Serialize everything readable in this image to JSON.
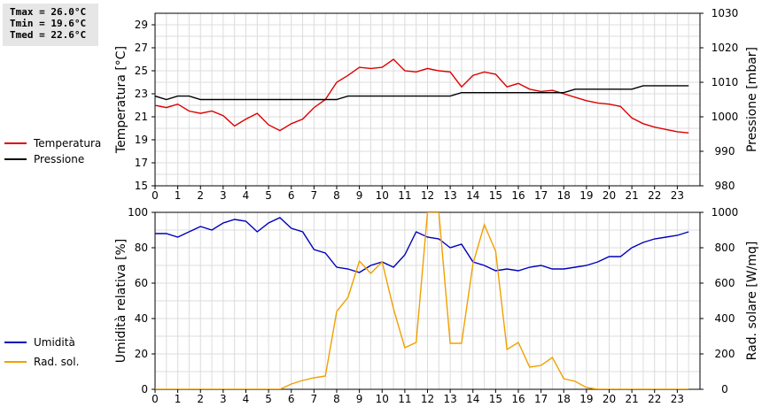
{
  "stats": {
    "tmax": "Tmax = 26.0°C",
    "tmin": "Tmin = 19.6°C",
    "tmed": "Tmed = 22.6°C"
  },
  "chart_data": [
    {
      "type": "line",
      "x_ticks": [
        "0",
        "1",
        "2",
        "3",
        "4",
        "5",
        "6",
        "7",
        "8",
        "9",
        "10",
        "11",
        "12",
        "13",
        "14",
        "15",
        "16",
        "17",
        "18",
        "19",
        "20",
        "21",
        "22",
        "23"
      ],
      "xlim": [
        0,
        24
      ],
      "ylabel": "Temperatura [°C]",
      "y2label": "Pressione [mbar]",
      "ylim": [
        15,
        30
      ],
      "y2lim": [
        980,
        1030
      ],
      "y_ticks": [
        "15",
        "17",
        "19",
        "21",
        "23",
        "25",
        "27",
        "29"
      ],
      "y2_ticks": [
        "980",
        "990",
        "1000",
        "1010",
        "1020",
        "1030"
      ],
      "grid": true,
      "legend_position": "left",
      "series": [
        {
          "name": "Temperatura",
          "axis": "left",
          "color": "#dd0000",
          "x": [
            0,
            0.5,
            1,
            1.5,
            2,
            2.5,
            3,
            3.5,
            4,
            4.5,
            5,
            5.5,
            6,
            6.5,
            7,
            7.5,
            8,
            8.5,
            9,
            9.5,
            10,
            10.5,
            11,
            11.5,
            12,
            12.5,
            13,
            13.5,
            14,
            14.5,
            15,
            15.5,
            16,
            16.5,
            17,
            17.5,
            18,
            18.5,
            19,
            19.5,
            20,
            20.5,
            21,
            21.5,
            22,
            22.5,
            23,
            23.5
          ],
          "values": [
            22.0,
            21.8,
            22.1,
            21.5,
            21.3,
            21.5,
            21.1,
            20.2,
            20.8,
            21.3,
            20.3,
            19.8,
            20.4,
            20.8,
            21.8,
            22.5,
            24.0,
            24.6,
            25.3,
            25.2,
            25.3,
            26.0,
            25.0,
            24.9,
            25.2,
            25.0,
            24.9,
            23.6,
            24.6,
            24.9,
            24.7,
            23.6,
            23.9,
            23.4,
            23.2,
            23.3,
            23.0,
            22.7,
            22.4,
            22.2,
            22.1,
            21.9,
            20.9,
            20.4,
            20.1,
            19.9,
            19.7,
            19.6
          ]
        },
        {
          "name": "Pressione",
          "axis": "right",
          "color": "#000000",
          "x": [
            0,
            0.5,
            1,
            1.5,
            2,
            2.5,
            3,
            3.5,
            4,
            4.5,
            5,
            5.5,
            6,
            6.5,
            7,
            7.5,
            8,
            8.5,
            9,
            9.5,
            10,
            10.5,
            11,
            11.5,
            12,
            12.5,
            13,
            13.5,
            14,
            14.5,
            15,
            15.5,
            16,
            16.5,
            17,
            17.5,
            18,
            18.5,
            19,
            19.5,
            20,
            20.5,
            21,
            21.5,
            22,
            22.5,
            23,
            23.5
          ],
          "values": [
            1006,
            1005,
            1006,
            1006,
            1005,
            1005,
            1005,
            1005,
            1005,
            1005,
            1005,
            1005,
            1005,
            1005,
            1005,
            1005,
            1005,
            1006,
            1006,
            1006,
            1006,
            1006,
            1006,
            1006,
            1006,
            1006,
            1006,
            1007,
            1007,
            1007,
            1007,
            1007,
            1007,
            1007,
            1007,
            1007,
            1007,
            1008,
            1008,
            1008,
            1008,
            1008,
            1008,
            1009,
            1009,
            1009,
            1009,
            1009
          ]
        }
      ]
    },
    {
      "type": "line",
      "x_ticks": [
        "0",
        "1",
        "2",
        "3",
        "4",
        "5",
        "6",
        "7",
        "8",
        "9",
        "10",
        "11",
        "12",
        "13",
        "14",
        "15",
        "16",
        "17",
        "18",
        "19",
        "20",
        "21",
        "22",
        "23"
      ],
      "xlim": [
        0,
        24
      ],
      "ylabel": "Umidità relativa [%]",
      "y2label": "Rad. solare [W/mq]",
      "ylim": [
        0,
        100
      ],
      "y2lim": [
        0,
        1000
      ],
      "y_ticks": [
        "0",
        "20",
        "40",
        "60",
        "80",
        "100"
      ],
      "y2_ticks": [
        "0",
        "200",
        "400",
        "600",
        "800",
        "1000"
      ],
      "grid": true,
      "legend_position": "left",
      "series": [
        {
          "name": "Umidità",
          "axis": "left",
          "color": "#0000bb",
          "x": [
            0,
            0.5,
            1,
            1.5,
            2,
            2.5,
            3,
            3.5,
            4,
            4.5,
            5,
            5.5,
            6,
            6.5,
            7,
            7.5,
            8,
            8.5,
            9,
            9.5,
            10,
            10.5,
            11,
            11.5,
            12,
            12.5,
            13,
            13.5,
            14,
            14.5,
            15,
            15.5,
            16,
            16.5,
            17,
            17.5,
            18,
            18.5,
            19,
            19.5,
            20,
            20.5,
            21,
            21.5,
            22,
            22.5,
            23,
            23.5
          ],
          "values": [
            88,
            88,
            86,
            89,
            92,
            90,
            94,
            96,
            95,
            89,
            94,
            97,
            91,
            89,
            79,
            77,
            69,
            68,
            66,
            70,
            72,
            69,
            76,
            89,
            86,
            85,
            80,
            82,
            72,
            70,
            67,
            68,
            67,
            69,
            70,
            68,
            68,
            69,
            70,
            72,
            75,
            75,
            80,
            83,
            85,
            86,
            87,
            89
          ]
        },
        {
          "name": "Rad. sol.",
          "axis": "right",
          "color": "#f0a000",
          "x": [
            0,
            0.5,
            1,
            1.5,
            2,
            2.5,
            3,
            3.5,
            4,
            4.5,
            5,
            5.5,
            6,
            6.5,
            7,
            7.5,
            8,
            8.5,
            9,
            9.5,
            10,
            10.5,
            11,
            11.5,
            12,
            12.5,
            13,
            13.5,
            14,
            14.5,
            15,
            15.5,
            16,
            16.5,
            17,
            17.5,
            18,
            18.5,
            19,
            19.5,
            20,
            20.5,
            21,
            21.5,
            22,
            22.5,
            23,
            23.5
          ],
          "values": [
            0,
            0,
            0,
            0,
            0,
            0,
            0,
            0,
            0,
            0,
            0,
            0,
            30,
            50,
            65,
            75,
            440,
            520,
            725,
            655,
            720,
            455,
            235,
            265,
            1000,
            1000,
            260,
            260,
            710,
            930,
            780,
            225,
            265,
            125,
            135,
            180,
            60,
            45,
            10,
            0,
            0,
            0,
            0,
            0,
            0,
            0,
            0,
            0
          ]
        }
      ]
    }
  ]
}
